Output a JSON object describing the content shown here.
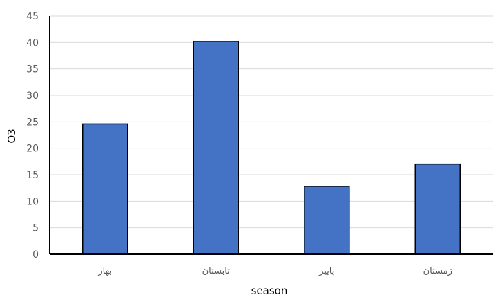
{
  "chart_data": {
    "type": "bar",
    "categories": [
      "بهار",
      "تابستان",
      "پاییز",
      "زمستان"
    ],
    "values": [
      24.6,
      40.2,
      12.8,
      17.0
    ],
    "xlabel": "season",
    "ylabel": "O3",
    "ylim": [
      0,
      45
    ],
    "yticks": [
      0,
      5,
      10,
      15,
      20,
      25,
      30,
      35,
      40,
      45
    ],
    "grid": true,
    "legend": "none",
    "colors": {
      "bar": "#4472C4",
      "bar_edge": "#000000",
      "grid": "#d9d9d9",
      "axis": "#000000"
    }
  }
}
